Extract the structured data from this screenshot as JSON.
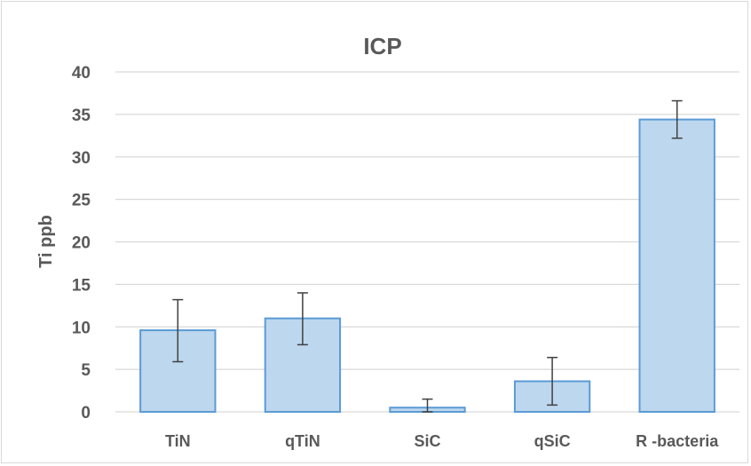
{
  "chart_data": {
    "type": "bar",
    "title": "ICP",
    "xlabel": "",
    "ylabel": "Ti ppb",
    "ylim": [
      0,
      40
    ],
    "yticks": [
      0,
      5,
      10,
      15,
      20,
      25,
      30,
      35,
      40
    ],
    "grid": true,
    "categories": [
      "TiN",
      "qTiN",
      "SiC",
      "qSiC",
      "R -bacteria"
    ],
    "values": [
      9.6,
      11.0,
      0.5,
      3.6,
      34.4
    ],
    "error_low": [
      5.9,
      7.9,
      0.0,
      0.8,
      32.2
    ],
    "error_high": [
      13.2,
      14.0,
      1.5,
      6.4,
      36.6
    ],
    "colors": {
      "bar_fill": "#bdd7ee",
      "bar_stroke": "#5b9bd5",
      "error_bar": "#404040",
      "grid": "#d9d9d9",
      "text": "#595959"
    }
  }
}
